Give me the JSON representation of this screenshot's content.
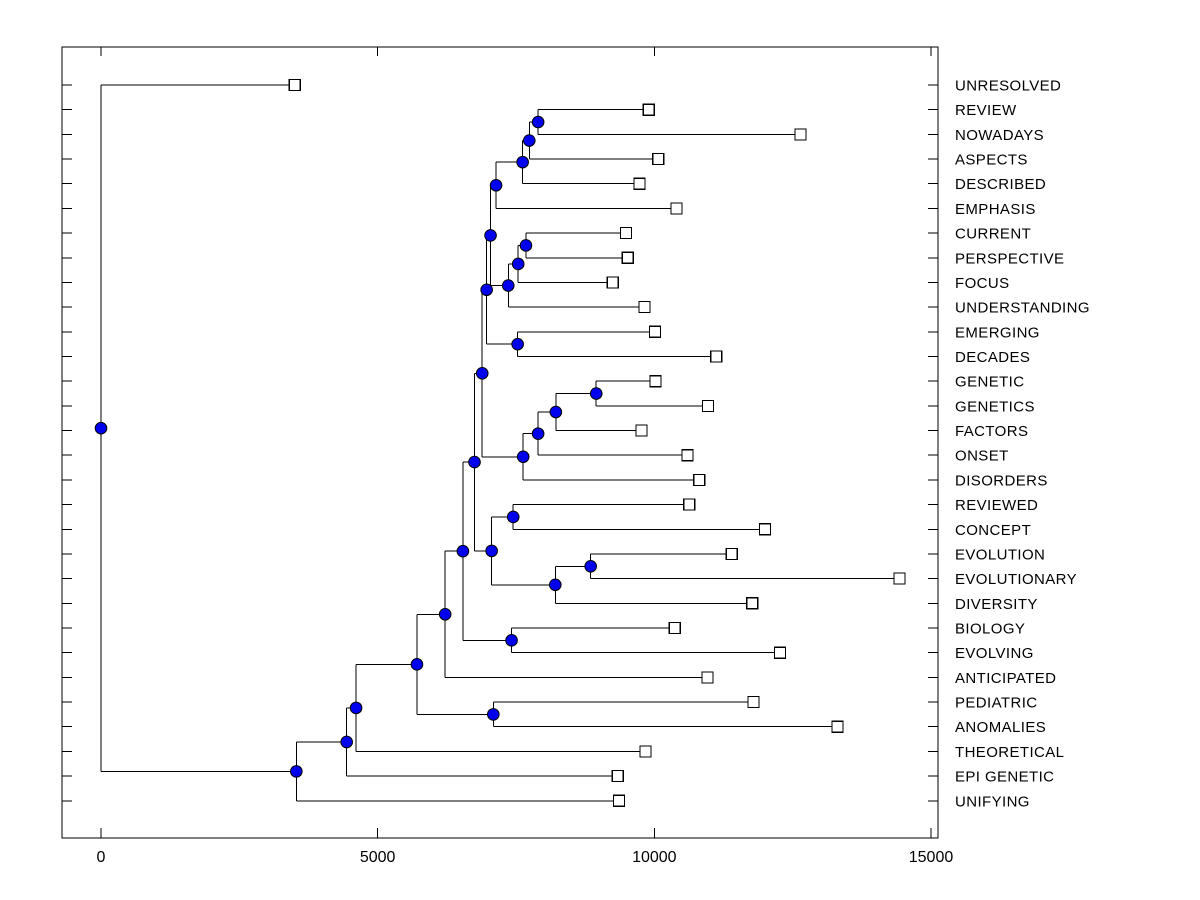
{
  "figure": {
    "background": "#ffffff"
  },
  "chart_data": {
    "type": "dendrogram",
    "title": "",
    "xlabel": "",
    "ylabel": "",
    "grid": false,
    "legend": null,
    "x_axis": {
      "ticks": [
        0,
        5000,
        10000,
        15000
      ],
      "xlim": [
        -700,
        15130
      ]
    },
    "colors": {
      "branch_line": "#000000",
      "internal_node_fill": "#0000ee",
      "internal_node_edge": "#000000",
      "leaf_square_fill": "#ffffff",
      "leaf_square_edge": "#000000",
      "axis_color": "#000000",
      "text_color": "#000000"
    },
    "leaves": [
      {
        "label": "UNRESOLVED",
        "value": 3500
      },
      {
        "label": "REVIEW",
        "value": 9900
      },
      {
        "label": "NOWADAYS",
        "value": 12640
      },
      {
        "label": "ASPECTS",
        "value": 10070
      },
      {
        "label": "DESCRIBED",
        "value": 9730
      },
      {
        "label": "EMPHASIS",
        "value": 10400
      },
      {
        "label": "CURRENT",
        "value": 9490
      },
      {
        "label": "PERSPECTIVE",
        "value": 9520
      },
      {
        "label": "FOCUS",
        "value": 9250
      },
      {
        "label": "UNDERSTANDING",
        "value": 9820
      },
      {
        "label": "EMERGING",
        "value": 10010
      },
      {
        "label": "DECADES",
        "value": 11120
      },
      {
        "label": "GENETIC",
        "value": 10020
      },
      {
        "label": "GENETICS",
        "value": 10970
      },
      {
        "label": "FACTORS",
        "value": 9770
      },
      {
        "label": "ONSET",
        "value": 10600
      },
      {
        "label": "DISORDERS",
        "value": 10810
      },
      {
        "label": "REVIEWED",
        "value": 10630
      },
      {
        "label": "CONCEPT",
        "value": 12000
      },
      {
        "label": "EVOLUTION",
        "value": 11400
      },
      {
        "label": "EVOLUTIONARY",
        "value": 14430
      },
      {
        "label": "DIVERSITY",
        "value": 11770
      },
      {
        "label": "BIOLOGY",
        "value": 10370
      },
      {
        "label": "EVOLVING",
        "value": 12270
      },
      {
        "label": "ANTICIPATED",
        "value": 10960
      },
      {
        "label": "PEDIATRIC",
        "value": 11790
      },
      {
        "label": "ANOMALIES",
        "value": 13310
      },
      {
        "label": "THEORETICAL",
        "value": 9840
      },
      {
        "label": "EPI GENETIC",
        "value": 9340
      },
      {
        "label": "UNIFYING",
        "value": 9360
      }
    ],
    "tree": {
      "x": 0,
      "children": [
        {
          "leaf": "UNRESOLVED"
        },
        {
          "x": 3530,
          "children": [
            {
              "x": 4440,
              "children": [
                {
                  "x": 4610,
                  "children": [
                    {
                      "x": 5710,
                      "children": [
                        {
                          "x": 6220,
                          "children": [
                            {
                              "x": 6540,
                              "children": [
                                {
                                  "x": 6750,
                                  "children": [
                                    {
                                      "x": 6890,
                                      "children": [
                                        {
                                          "x": 6970,
                                          "children": [
                                            {
                                              "x": 7040,
                                              "children": [
                                                {
                                                  "x": 7140,
                                                  "children": [
                                                    {
                                                      "x": 7620,
                                                      "children": [
                                                        {
                                                          "x": 7740,
                                                          "children": [
                                                            {
                                                              "x": 7900,
                                                              "children": [
                                                                {
                                                                  "leaf": "REVIEW"
                                                                },
                                                                {
                                                                  "leaf": "NOWADAYS"
                                                                }
                                                              ]
                                                            },
                                                            {
                                                              "leaf": "ASPECTS"
                                                            }
                                                          ]
                                                        },
                                                        {
                                                          "leaf": "DESCRIBED"
                                                        }
                                                      ]
                                                    },
                                                    {
                                                      "leaf": "EMPHASIS"
                                                    }
                                                  ]
                                                },
                                                {
                                                  "x": 7360,
                                                  "children": [
                                                    {
                                                      "x": 7540,
                                                      "children": [
                                                        {
                                                          "x": 7680,
                                                          "children": [
                                                            {
                                                              "leaf": "CURRENT"
                                                            },
                                                            {
                                                              "leaf": "PERSPECTIVE"
                                                            }
                                                          ]
                                                        },
                                                        {
                                                          "leaf": "FOCUS"
                                                        }
                                                      ]
                                                    },
                                                    {
                                                      "leaf": "UNDERSTANDING"
                                                    }
                                                  ]
                                                }
                                              ]
                                            },
                                            {
                                              "x": 7530,
                                              "children": [
                                                {
                                                  "leaf": "EMERGING"
                                                },
                                                {
                                                  "leaf": "DECADES"
                                                }
                                              ]
                                            }
                                          ]
                                        },
                                        {
                                          "x": 7630,
                                          "children": [
                                            {
                                              "x": 7900,
                                              "children": [
                                                {
                                                  "x": 8220,
                                                  "children": [
                                                    {
                                                      "x": 8950,
                                                      "children": [
                                                        {
                                                          "leaf": "GENETIC"
                                                        },
                                                        {
                                                          "leaf": "GENETICS"
                                                        }
                                                      ]
                                                    },
                                                    {
                                                      "leaf": "FACTORS"
                                                    }
                                                  ]
                                                },
                                                {
                                                  "leaf": "ONSET"
                                                }
                                              ]
                                            },
                                            {
                                              "leaf": "DISORDERS"
                                            }
                                          ]
                                        }
                                      ]
                                    },
                                    {
                                      "x": 7060,
                                      "children": [
                                        {
                                          "x": 7450,
                                          "children": [
                                            {
                                              "leaf": "REVIEWED"
                                            },
                                            {
                                              "leaf": "CONCEPT"
                                            }
                                          ]
                                        },
                                        {
                                          "x": 8210,
                                          "children": [
                                            {
                                              "x": 8850,
                                              "children": [
                                                {
                                                  "leaf": "EVOLUTION"
                                                },
                                                {
                                                  "leaf": "EVOLUTIONARY"
                                                }
                                              ]
                                            },
                                            {
                                              "leaf": "DIVERSITY"
                                            }
                                          ]
                                        }
                                      ]
                                    }
                                  ]
                                },
                                {
                                  "x": 7420,
                                  "children": [
                                    {
                                      "leaf": "BIOLOGY"
                                    },
                                    {
                                      "leaf": "EVOLVING"
                                    }
                                  ]
                                }
                              ]
                            },
                            {
                              "leaf": "ANTICIPATED"
                            }
                          ]
                        },
                        {
                          "x": 7090,
                          "children": [
                            {
                              "leaf": "PEDIATRIC"
                            },
                            {
                              "leaf": "ANOMALIES"
                            }
                          ]
                        }
                      ]
                    },
                    {
                      "leaf": "THEORETICAL"
                    }
                  ]
                },
                {
                  "leaf": "EPI GENETIC"
                }
              ]
            },
            {
              "leaf": "UNIFYING"
            }
          ]
        }
      ]
    }
  }
}
